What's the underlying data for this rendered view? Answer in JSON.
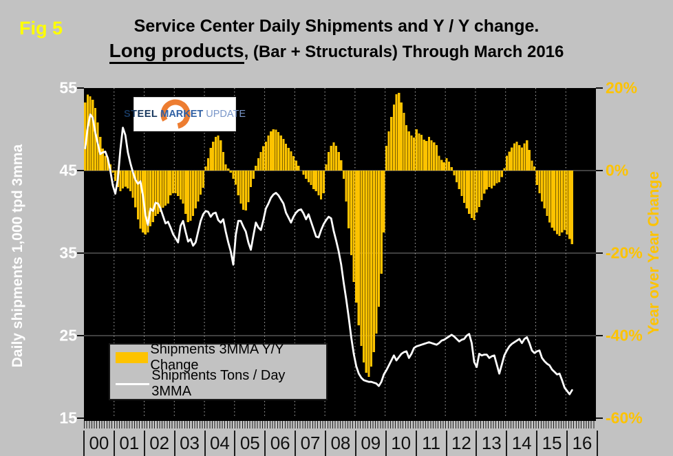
{
  "header": {
    "fig_label": "Fig 5",
    "title_line1": "Service Center Daily Shipments and Y / Y change.",
    "title2_underlined": "Long products",
    "title2_rest": ", (Bar + Structurals) Through March 2016"
  },
  "logo": {
    "word1": "STEEL",
    "word2": "MARKET",
    "word3": "UPDATE"
  },
  "axes": {
    "left": {
      "title": "Daily shipments 1,000 tpd 3mma",
      "tick_labels": [
        "55",
        "45",
        "35",
        "25",
        "15"
      ]
    },
    "right": {
      "title": "Year over Year Change",
      "tick_labels": [
        "20%",
        "0%",
        "-20%",
        "-40%",
        "-60%"
      ]
    }
  },
  "legend": {
    "items": [
      {
        "label": "Shipments 3MMA Y/Y Change",
        "swatch": "bar"
      },
      {
        "label": "Shipments Tons / Day 3MMA",
        "swatch": "line"
      }
    ]
  },
  "colors": {
    "background": "#c2c2c2",
    "plot_bg": "#000000",
    "bar": "#fdc300",
    "line": "#ffffff",
    "fig_label": "#ffff00",
    "left_axis_text": "#ffffff",
    "right_axis_text": "#fdc300",
    "grid": "#7f7f7f",
    "year_grid": "#b3b3b3",
    "tick": "#111111"
  },
  "chart_data": {
    "type": "bar+line",
    "x_unit": "month",
    "x_start": "2000-01",
    "x_end": "2016-03",
    "year_labels": [
      "00",
      "01",
      "02",
      "03",
      "04",
      "05",
      "06",
      "07",
      "08",
      "09",
      "10",
      "11",
      "12",
      "13",
      "14",
      "15",
      "16"
    ],
    "left_axis": {
      "label": "Daily shipments 1,000 tpd 3mma",
      "range": [
        15,
        55
      ],
      "ticks": [
        55,
        45,
        35,
        25,
        15
      ]
    },
    "right_axis": {
      "label": "Year over Year Change",
      "range": [
        -60,
        20
      ],
      "ticks": [
        20,
        0,
        -20,
        -40,
        -60
      ]
    },
    "grid": {
      "horizontal": "solid gray at major ticks",
      "vertical": "dashed at year boundaries"
    },
    "legend_position": "inside lower-left",
    "series": [
      {
        "name": "Shipments 3MMA Y/Y Change",
        "type": "bar",
        "axis": "right",
        "unit": "%",
        "values": [
          16.5,
          18.4,
          18.0,
          17.2,
          15.2,
          11.7,
          8.2,
          5.3,
          3.6,
          3.0,
          1.5,
          -0.5,
          -2.5,
          -4.0,
          -5.0,
          -4.3,
          -3.9,
          -4.3,
          -5.0,
          -6.6,
          -8.9,
          -11.8,
          -14.1,
          -15.0,
          -15.5,
          -15.0,
          -13.5,
          -12.5,
          -11.0,
          -10.5,
          -10.0,
          -9.0,
          -8.5,
          -8.0,
          -6.0,
          -5.5,
          -5.5,
          -6.2,
          -7.0,
          -8.0,
          -10.5,
          -12.5,
          -12.2,
          -11.0,
          -9.2,
          -7.5,
          -5.8,
          -4.2,
          1.0,
          3.0,
          5.5,
          7.0,
          8.2,
          8.5,
          7.3,
          4.5,
          1.5,
          0.5,
          -0.5,
          -2.0,
          -3.4,
          -6.0,
          -8.0,
          -9.5,
          -9.7,
          -7.7,
          -4.0,
          -2.0,
          1.2,
          3.0,
          4.5,
          5.9,
          7.0,
          8.5,
          9.5,
          10.0,
          9.9,
          9.3,
          8.5,
          7.7,
          6.5,
          5.5,
          4.7,
          3.5,
          2.4,
          1.2,
          0.0,
          -1.0,
          -2.0,
          -2.8,
          -3.5,
          -4.5,
          -5.0,
          -6.0,
          -7.0,
          -5.5,
          1.5,
          4.5,
          6.0,
          6.8,
          6.0,
          4.5,
          2.5,
          -2.0,
          -7.5,
          -14.0,
          -20.5,
          -27.0,
          -32.0,
          -37.5,
          -42.5,
          -46.5,
          -49.0,
          -50.0,
          -47.5,
          -44.0,
          -39.5,
          -33.0,
          -25.0,
          -15.0,
          6.0,
          9.5,
          13.0,
          16.0,
          18.5,
          18.8,
          16.5,
          14.0,
          11.0,
          9.5,
          8.5,
          8.0,
          10.0,
          9.0,
          8.7,
          7.5,
          7.2,
          8.2,
          7.3,
          6.8,
          6.2,
          3.6,
          2.6,
          2.0,
          3.0,
          2.2,
          0.8,
          -1.2,
          -2.8,
          -4.5,
          -6.2,
          -7.8,
          -9.2,
          -10.5,
          -11.5,
          -12.0,
          -10.2,
          -8.8,
          -7.2,
          -5.6,
          -4.6,
          -4.0,
          -4.3,
          -3.7,
          -3.1,
          -2.8,
          -1.6,
          0.6,
          3.6,
          4.6,
          5.6,
          6.6,
          7.0,
          6.2,
          5.6,
          6.6,
          7.3,
          5.0,
          2.4,
          1.0,
          -3.5,
          -5.5,
          -7.5,
          -9.2,
          -11.0,
          -12.6,
          -13.8,
          -14.6,
          -15.4,
          -15.8,
          -15.0,
          -14.4,
          -15.5,
          -16.6,
          -17.8
        ]
      },
      {
        "name": "Shipments Tons / Day 3MMA",
        "type": "line",
        "axis": "left",
        "unit": "1,000 tons per day",
        "values": [
          47.7,
          50.2,
          51.8,
          51.4,
          49.6,
          48.3,
          47.0,
          47.2,
          47.3,
          46.5,
          45.0,
          43.2,
          42.2,
          44.0,
          47.5,
          50.2,
          49.3,
          47.2,
          45.9,
          44.8,
          43.9,
          43.4,
          43.7,
          42.0,
          39.6,
          38.4,
          40.4,
          40.1,
          41.1,
          41.0,
          40.4,
          39.5,
          38.6,
          38.8,
          38.1,
          37.3,
          36.8,
          36.3,
          38.3,
          38.9,
          37.6,
          36.4,
          36.7,
          35.9,
          36.3,
          37.6,
          38.9,
          39.7,
          40.1,
          40.0,
          39.4,
          39.8,
          39.9,
          39.0,
          38.7,
          39.1,
          37.6,
          36.3,
          35.2,
          33.6,
          37.2,
          38.9,
          38.9,
          38.2,
          37.6,
          36.3,
          35.4,
          37.1,
          38.7,
          38.1,
          37.8,
          39.0,
          40.4,
          41.0,
          41.7,
          42.1,
          42.3,
          42.0,
          41.5,
          41.0,
          39.9,
          39.3,
          38.7,
          39.4,
          39.9,
          40.2,
          40.3,
          39.8,
          39.1,
          39.7,
          38.8,
          37.9,
          37.0,
          36.9,
          37.8,
          38.5,
          39.0,
          39.4,
          39.2,
          37.7,
          36.5,
          35.2,
          33.6,
          31.4,
          29.4,
          27.2,
          24.8,
          22.8,
          21.3,
          20.4,
          19.9,
          19.6,
          19.5,
          19.4,
          19.4,
          19.3,
          19.2,
          18.9,
          19.4,
          20.3,
          20.8,
          21.4,
          22.0,
          22.6,
          22.0,
          22.4,
          22.8,
          23.0,
          23.1,
          22.3,
          22.8,
          23.5,
          23.7,
          23.8,
          23.9,
          24.0,
          24.1,
          24.2,
          24.1,
          24.0,
          23.9,
          24.1,
          24.4,
          24.5,
          24.7,
          24.9,
          25.1,
          24.9,
          24.6,
          24.3,
          24.5,
          24.6,
          25.0,
          25.2,
          24.1,
          21.8,
          21.2,
          22.8,
          22.6,
          22.7,
          22.7,
          22.3,
          22.5,
          22.6,
          21.5,
          20.4,
          21.5,
          22.6,
          23.2,
          23.7,
          24.0,
          24.2,
          24.4,
          24.6,
          24.1,
          24.6,
          24.8,
          24.1,
          23.2,
          22.9,
          23.1,
          23.2,
          22.3,
          21.9,
          21.6,
          21.4,
          20.9,
          20.6,
          20.3,
          20.4,
          19.6,
          18.7,
          18.3,
          17.9,
          18.4
        ]
      }
    ]
  }
}
